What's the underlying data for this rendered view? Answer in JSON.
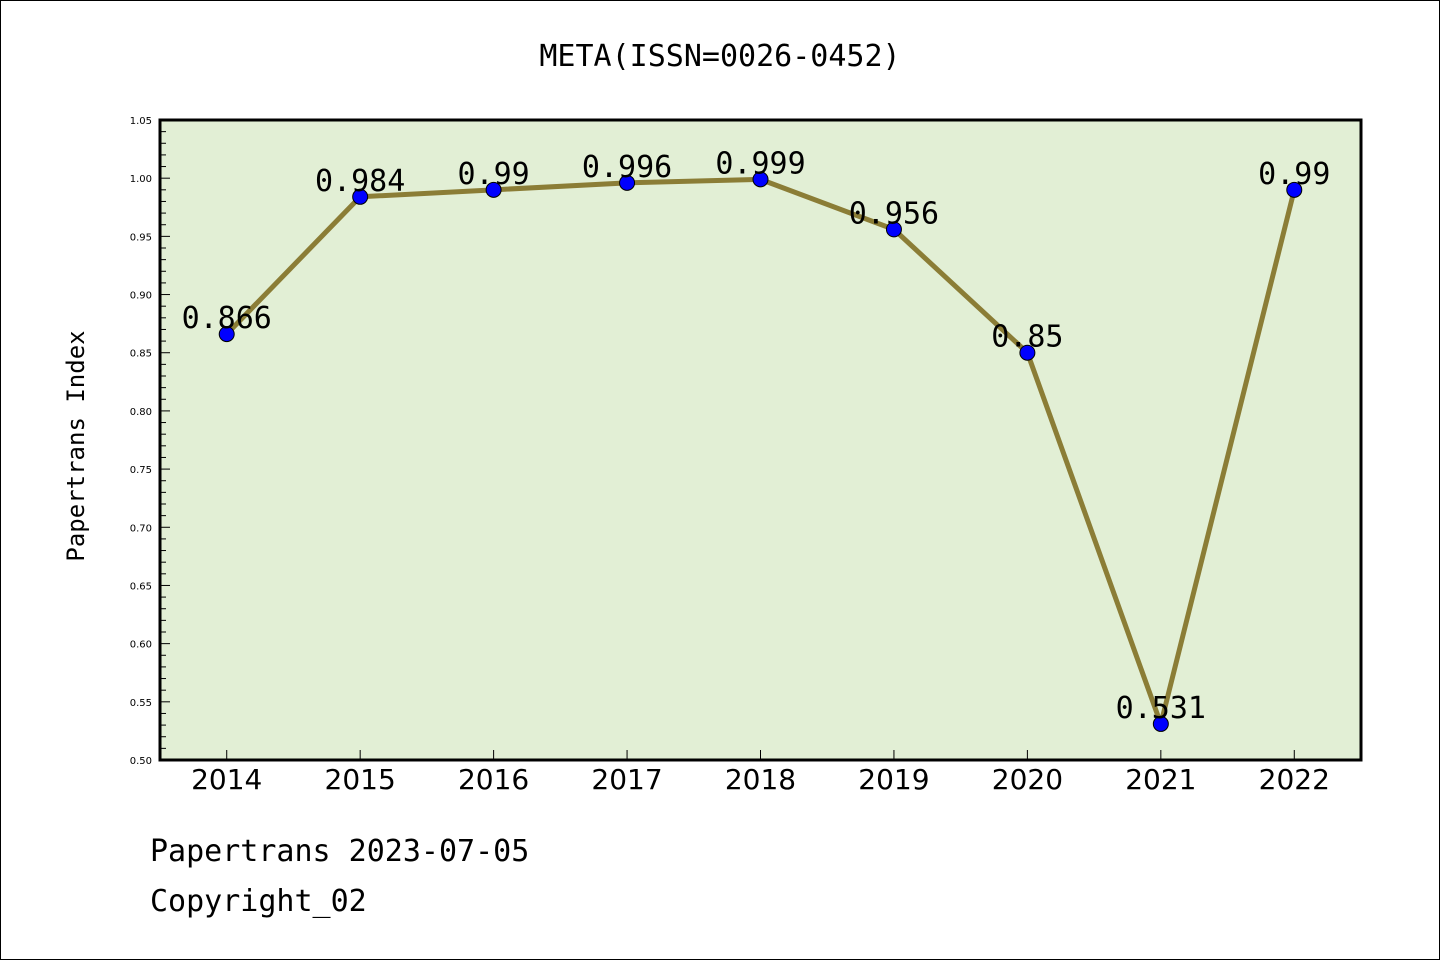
{
  "chart_data": {
    "type": "line",
    "title": "META(ISSN=0026-0452)",
    "ylabel": "Papertrans Index",
    "xlabel": "",
    "categories": [
      "2014",
      "2015",
      "2016",
      "2017",
      "2018",
      "2019",
      "2020",
      "2021",
      "2022"
    ],
    "series": [
      {
        "values": [
          0.866,
          0.984,
          0.99,
          0.996,
          0.999,
          0.956,
          0.85,
          0.531,
          0.99
        ],
        "data_labels": [
          "0.866",
          "0.984",
          "0.99",
          "0.996",
          "0.999",
          "0.956",
          "0.85",
          "0.531",
          "0.99"
        ]
      }
    ],
    "ylim": [
      0.5,
      1.05
    ],
    "yticks": [
      "0.50",
      "0.55",
      "0.60",
      "0.65",
      "0.70",
      "0.75",
      "0.80",
      "0.85",
      "0.90",
      "0.95",
      "1.00",
      "1.05"
    ],
    "grid": false,
    "colors": {
      "plot_background": "#e2efd5",
      "line": "#8b7d36",
      "marker": "#0000ff"
    }
  },
  "footer": {
    "line1": "Papertrans 2023-07-05",
    "line2": "Copyright_02"
  }
}
